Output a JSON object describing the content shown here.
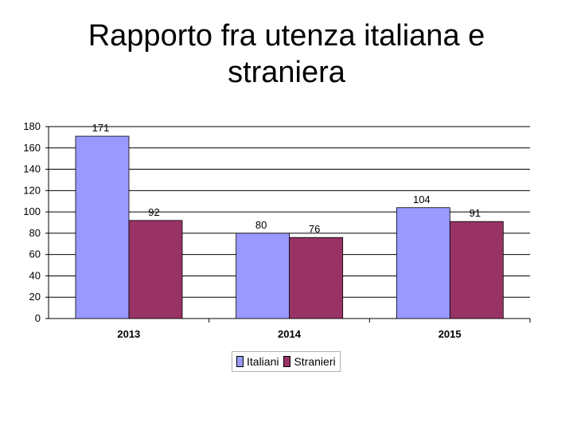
{
  "title_line1": "Rapporto fra utenza italiana e",
  "title_line2": "straniera",
  "chart_data": {
    "type": "bar",
    "categories": [
      "2013",
      "2014",
      "2015"
    ],
    "series": [
      {
        "name": "Italiani",
        "values": [
          171,
          80,
          104
        ],
        "color": "#9999ff"
      },
      {
        "name": "Stranieri",
        "values": [
          92,
          76,
          91
        ],
        "color": "#993366"
      }
    ],
    "ylim": [
      0,
      180
    ],
    "yticks": [
      0,
      20,
      40,
      60,
      80,
      100,
      120,
      140,
      160,
      180
    ],
    "grid": true,
    "legend": "bottom",
    "data_labels": true
  }
}
